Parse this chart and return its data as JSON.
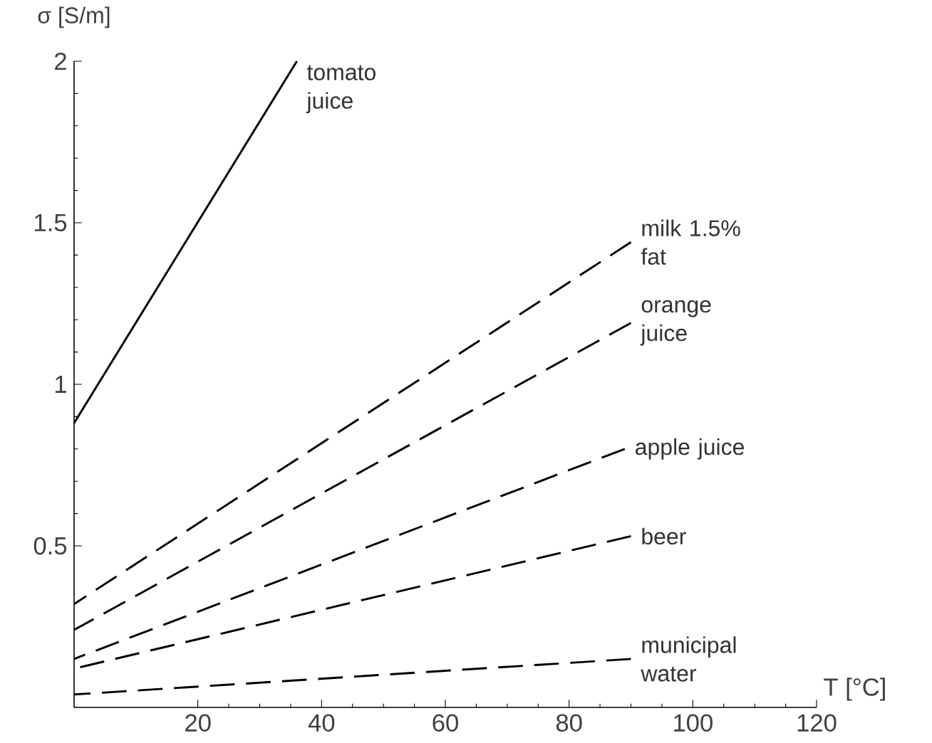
{
  "chart_data": {
    "type": "line",
    "xlabel": "T [°C]",
    "ylabel": "σ [S/m]",
    "xlim": [
      0,
      120
    ],
    "ylim": [
      0,
      2
    ],
    "xticks": [
      20,
      40,
      60,
      80,
      100,
      120
    ],
    "yticks": [
      0.5,
      1,
      1.5,
      2
    ],
    "grid": false,
    "legend": false,
    "marker": "none",
    "series": [
      {
        "name": "tomato juice",
        "color": "#000000",
        "line_style": "solid",
        "x": [
          0,
          36
        ],
        "values": [
          0.88,
          2
        ]
      },
      {
        "name": "milk 1.5% fat",
        "color": "#000000",
        "line_style": "dashed",
        "x": [
          0,
          90
        ],
        "values": [
          0.32,
          1.44
        ]
      },
      {
        "name": "orange juice",
        "color": "#000000",
        "line_style": "dashed",
        "x": [
          0,
          90
        ],
        "values": [
          0.24,
          1.19
        ]
      },
      {
        "name": "apple juice",
        "color": "#000000",
        "line_style": "dashed",
        "x": [
          0,
          89
        ],
        "values": [
          0.15,
          0.8
        ]
      },
      {
        "name": "beer",
        "color": "#000000",
        "line_style": "dashed",
        "x": [
          0,
          90
        ],
        "values": [
          0.12,
          0.53
        ]
      },
      {
        "name": "municipal water",
        "color": "#000000",
        "line_style": "dashed",
        "x": [
          0,
          90
        ],
        "values": [
          0.04,
          0.15
        ]
      }
    ]
  }
}
